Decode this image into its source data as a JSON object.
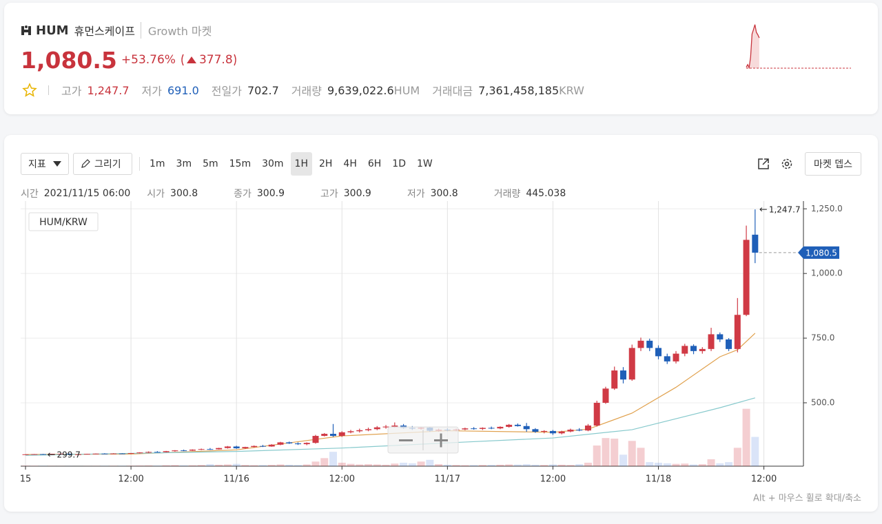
{
  "header": {
    "symbol": "HUM",
    "name": "휴먼스케이프",
    "market": "Growth 마켓",
    "price": "1,080.5",
    "change_rate": "+53.76%",
    "change": "377.8",
    "stats": [
      {
        "label": "고가",
        "value": "1,247.7"
      },
      {
        "label": "저가",
        "value": "691.0"
      },
      {
        "label": "전일가",
        "value": "702.7"
      },
      {
        "label": "거래량",
        "value": "9,639,022.6",
        "unit": "HUM"
      },
      {
        "label": "거래대금",
        "value": "7,361,458,185",
        "unit": "KRW"
      }
    ],
    "sparkline": {
      "values": [
        712,
        745,
        708,
        840,
        1130,
        1185,
        1247.7,
        1150,
        1120,
        1080.5
      ],
      "ylim": [
        700,
        1280
      ]
    }
  },
  "toolbar": {
    "indicator": "지표",
    "draw": "그리기",
    "intervals": [
      "1m",
      "3m",
      "5m",
      "15m",
      "30m",
      "1H",
      "2H",
      "4H",
      "6H",
      "1D",
      "1W"
    ],
    "selected": 5,
    "depth": "마켓 뎁스"
  },
  "info": [
    {
      "label": "시간",
      "value": "2021/11/15 06:00"
    },
    {
      "label": "시가",
      "value": "300.8"
    },
    {
      "label": "종가",
      "value": "300.9"
    },
    {
      "label": "고가",
      "value": "300.9"
    },
    {
      "label": "저가",
      "value": "300.8"
    },
    {
      "label": "거래량",
      "value": "445.038"
    }
  ],
  "chart_data": {
    "type": "candlestick",
    "legend": "HUM/KRW",
    "up_color": "#d03a45",
    "down_color": "#1f5fb8",
    "x": [
      0,
      1,
      2,
      3,
      4,
      5,
      6,
      7,
      8,
      9,
      10,
      11,
      12,
      13,
      14,
      15,
      16,
      17,
      18,
      19,
      20,
      21,
      22,
      23,
      24,
      25,
      26,
      27,
      28,
      29,
      30,
      31,
      32,
      33,
      34,
      35,
      36,
      37,
      38,
      39,
      40,
      41,
      42,
      43,
      44,
      45,
      46,
      47,
      48,
      49,
      50,
      51,
      52,
      53,
      54,
      55,
      56,
      57,
      58,
      59,
      60,
      61,
      62,
      63,
      64,
      65,
      66,
      67,
      68,
      69,
      70,
      71,
      72,
      73,
      74,
      75,
      76,
      77,
      78,
      79,
      80,
      81,
      82,
      83
    ],
    "open": [
      300,
      300.8,
      301.5,
      300.9,
      302.5,
      303,
      300.8,
      300.9,
      302.5,
      303.5,
      303,
      304,
      303,
      305.5,
      308,
      310,
      309,
      313,
      316,
      315,
      319,
      321,
      320,
      325,
      331,
      324,
      329,
      333,
      331,
      338,
      347,
      343,
      340,
      345,
      372,
      380,
      372,
      386,
      390,
      394,
      398,
      405,
      408,
      412,
      403,
      400,
      404,
      392,
      396,
      394,
      397,
      401,
      399,
      403,
      401,
      407,
      415,
      410,
      398,
      388,
      391,
      382,
      389,
      396,
      393,
      412,
      500,
      555,
      625,
      590,
      712,
      740,
      712,
      680,
      660,
      690,
      720,
      700,
      708,
      765,
      745,
      708,
      840,
      1150
    ],
    "high": [
      301.5,
      302,
      302.5,
      303,
      304,
      304,
      300.9,
      303,
      304,
      305,
      305,
      305,
      306,
      309,
      312,
      313,
      314,
      317,
      319,
      320,
      323,
      325,
      326,
      333,
      334,
      330,
      335,
      337,
      340,
      349,
      350,
      347,
      347,
      376,
      383,
      418,
      390,
      395,
      400,
      404,
      410,
      414,
      424,
      418,
      410,
      408,
      408,
      400,
      402,
      400,
      404,
      406,
      405,
      408,
      409,
      418,
      420,
      422,
      402,
      394,
      395,
      392,
      400,
      402,
      418,
      508,
      562,
      640,
      638,
      725,
      752,
      748,
      722,
      690,
      700,
      728,
      726,
      715,
      790,
      772,
      750,
      905,
      1185,
      1247.7
    ],
    "low": [
      300,
      300,
      299.7,
      300.5,
      301,
      301.5,
      300.8,
      300.5,
      301,
      302,
      302,
      302.5,
      302,
      304,
      306,
      308,
      308,
      311,
      313,
      314,
      317,
      318,
      319,
      323,
      322,
      322,
      327,
      329,
      330,
      336,
      341,
      337,
      336,
      342,
      370,
      368,
      368,
      382,
      385,
      390,
      394,
      400,
      404,
      400,
      395,
      396,
      388,
      388,
      390,
      390,
      394,
      396,
      395,
      398,
      398,
      404,
      408,
      388,
      384,
      382,
      376,
      378,
      386,
      390,
      390,
      408,
      496,
      550,
      575,
      585,
      700,
      700,
      668,
      650,
      652,
      680,
      688,
      690,
      700,
      735,
      700,
      695,
      835,
      1040
    ],
    "close": [
      300.8,
      301.5,
      300.9,
      302.5,
      303,
      302,
      300.9,
      302.5,
      303.5,
      303,
      304,
      303,
      305.5,
      308,
      310,
      309,
      313,
      316,
      315,
      319,
      321,
      320,
      325,
      331,
      324,
      329,
      333,
      331,
      338,
      347,
      343,
      340,
      345,
      372,
      380,
      372,
      386,
      390,
      394,
      398,
      405,
      408,
      412,
      403,
      400,
      404,
      392,
      396,
      394,
      397,
      401,
      399,
      403,
      401,
      407,
      415,
      410,
      398,
      388,
      391,
      382,
      389,
      396,
      393,
      412,
      500,
      555,
      625,
      590,
      712,
      740,
      712,
      680,
      660,
      690,
      720,
      700,
      708,
      765,
      745,
      708,
      840,
      1130,
      1080.5
    ],
    "volume": [
      8000,
      6000,
      5000,
      4000,
      3000,
      2000,
      445.038,
      3000,
      4000,
      5000,
      5000,
      6000,
      8000,
      10000,
      12000,
      9000,
      15000,
      18000,
      12000,
      14000,
      20000,
      35000,
      25000,
      30000,
      40000,
      20000,
      15000,
      18000,
      22000,
      30000,
      25000,
      20000,
      30000,
      80000,
      140000,
      250000,
      60000,
      40000,
      30000,
      35000,
      30000,
      25000,
      45000,
      60000,
      50000,
      80000,
      110000,
      35000,
      25000,
      20000,
      15000,
      18000,
      20000,
      22000,
      25000,
      30000,
      28000,
      35000,
      25000,
      20000,
      30000,
      25000,
      20000,
      35000,
      60000,
      360000,
      490000,
      480000,
      200000,
      440000,
      320000,
      70000,
      60000,
      50000,
      40000,
      45000,
      30000,
      35000,
      120000,
      50000,
      70000,
      320000,
      1000000,
      510000
    ],
    "volume_lim": [
      0,
      1200000
    ],
    "ma": [
      {
        "color": "#e0a04c",
        "x": [
          0,
          12,
          24,
          30,
          36,
          48,
          60,
          64,
          69,
          74,
          79,
          81,
          83
        ],
        "values": [
          300,
          302,
          318,
          345,
          372,
          392,
          386,
          398,
          460,
          560,
          678,
          705,
          769
        ]
      },
      {
        "color": "#86c9cc",
        "x": [
          0,
          24,
          36,
          48,
          60,
          69,
          79,
          83
        ],
        "values": [
          297,
          312,
          325,
          345,
          364,
          396,
          481,
          519
        ]
      }
    ],
    "markers": [
      {
        "x": 83,
        "value": 1247.7,
        "label": "1,247.7"
      },
      {
        "x": 2,
        "value": 299.7,
        "label": "299.7"
      }
    ],
    "current": {
      "x": 83,
      "value": 1080.5,
      "label": "1,080.5"
    },
    "xlim": [
      -0.55,
      88.5
    ],
    "ylim": [
      255,
      1280
    ],
    "xticks": [
      {
        "value": 0,
        "label": "15"
      },
      {
        "value": 12,
        "label": "12:00"
      },
      {
        "value": 24,
        "label": "11/16"
      },
      {
        "value": 36,
        "label": "12:00"
      },
      {
        "value": 48,
        "label": "11/17"
      },
      {
        "value": 60,
        "label": "12:00"
      },
      {
        "value": 72,
        "label": "11/18"
      },
      {
        "value": 84,
        "label": "12:00"
      }
    ],
    "yticks": [
      {
        "value": 500,
        "label": "500.0"
      },
      {
        "value": 750,
        "label": "750.0"
      },
      {
        "value": 1000,
        "label": "1,000.0"
      },
      {
        "value": 1250,
        "label": "1,250.0"
      }
    ],
    "grid": true
  },
  "footer": "Alt + 마우스 휠로 확대/축소"
}
